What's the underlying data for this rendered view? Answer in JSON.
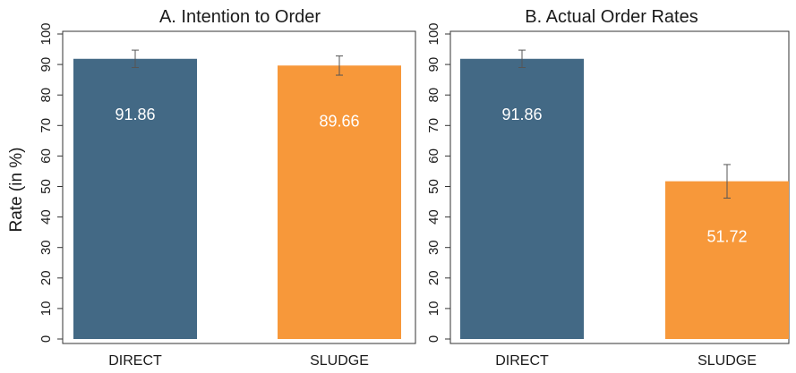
{
  "chart_data": [
    {
      "type": "bar",
      "title": "A. Intention to Order",
      "categories": [
        "DIRECT",
        "SLUDGE"
      ],
      "values": [
        91.86,
        89.66
      ],
      "value_labels": [
        "91.86",
        "89.66"
      ],
      "error_bars": [
        [
          89,
          94.7
        ],
        [
          86.5,
          92.8
        ]
      ],
      "ylabel": "Rate (in %)",
      "ylim": [
        0,
        100
      ],
      "yticks": [
        "0",
        "10",
        "20",
        "30",
        "40",
        "50",
        "60",
        "70",
        "80",
        "90",
        "100"
      ],
      "bar_colors": [
        "#436985",
        "#f7983a"
      ],
      "grid": false
    },
    {
      "type": "bar",
      "title": "B. Actual Order Rates",
      "categories": [
        "DIRECT",
        "SLUDGE"
      ],
      "values": [
        91.86,
        51.72
      ],
      "value_labels": [
        "91.86",
        "51.72"
      ],
      "error_bars": [
        [
          89,
          94.7
        ],
        [
          46.2,
          57.2
        ]
      ],
      "ylim": [
        0,
        100
      ],
      "yticks": [
        "0",
        "10",
        "20",
        "30",
        "40",
        "50",
        "60",
        "70",
        "80",
        "90",
        "100"
      ],
      "bar_colors": [
        "#436985",
        "#f7983a"
      ],
      "grid": false
    }
  ]
}
